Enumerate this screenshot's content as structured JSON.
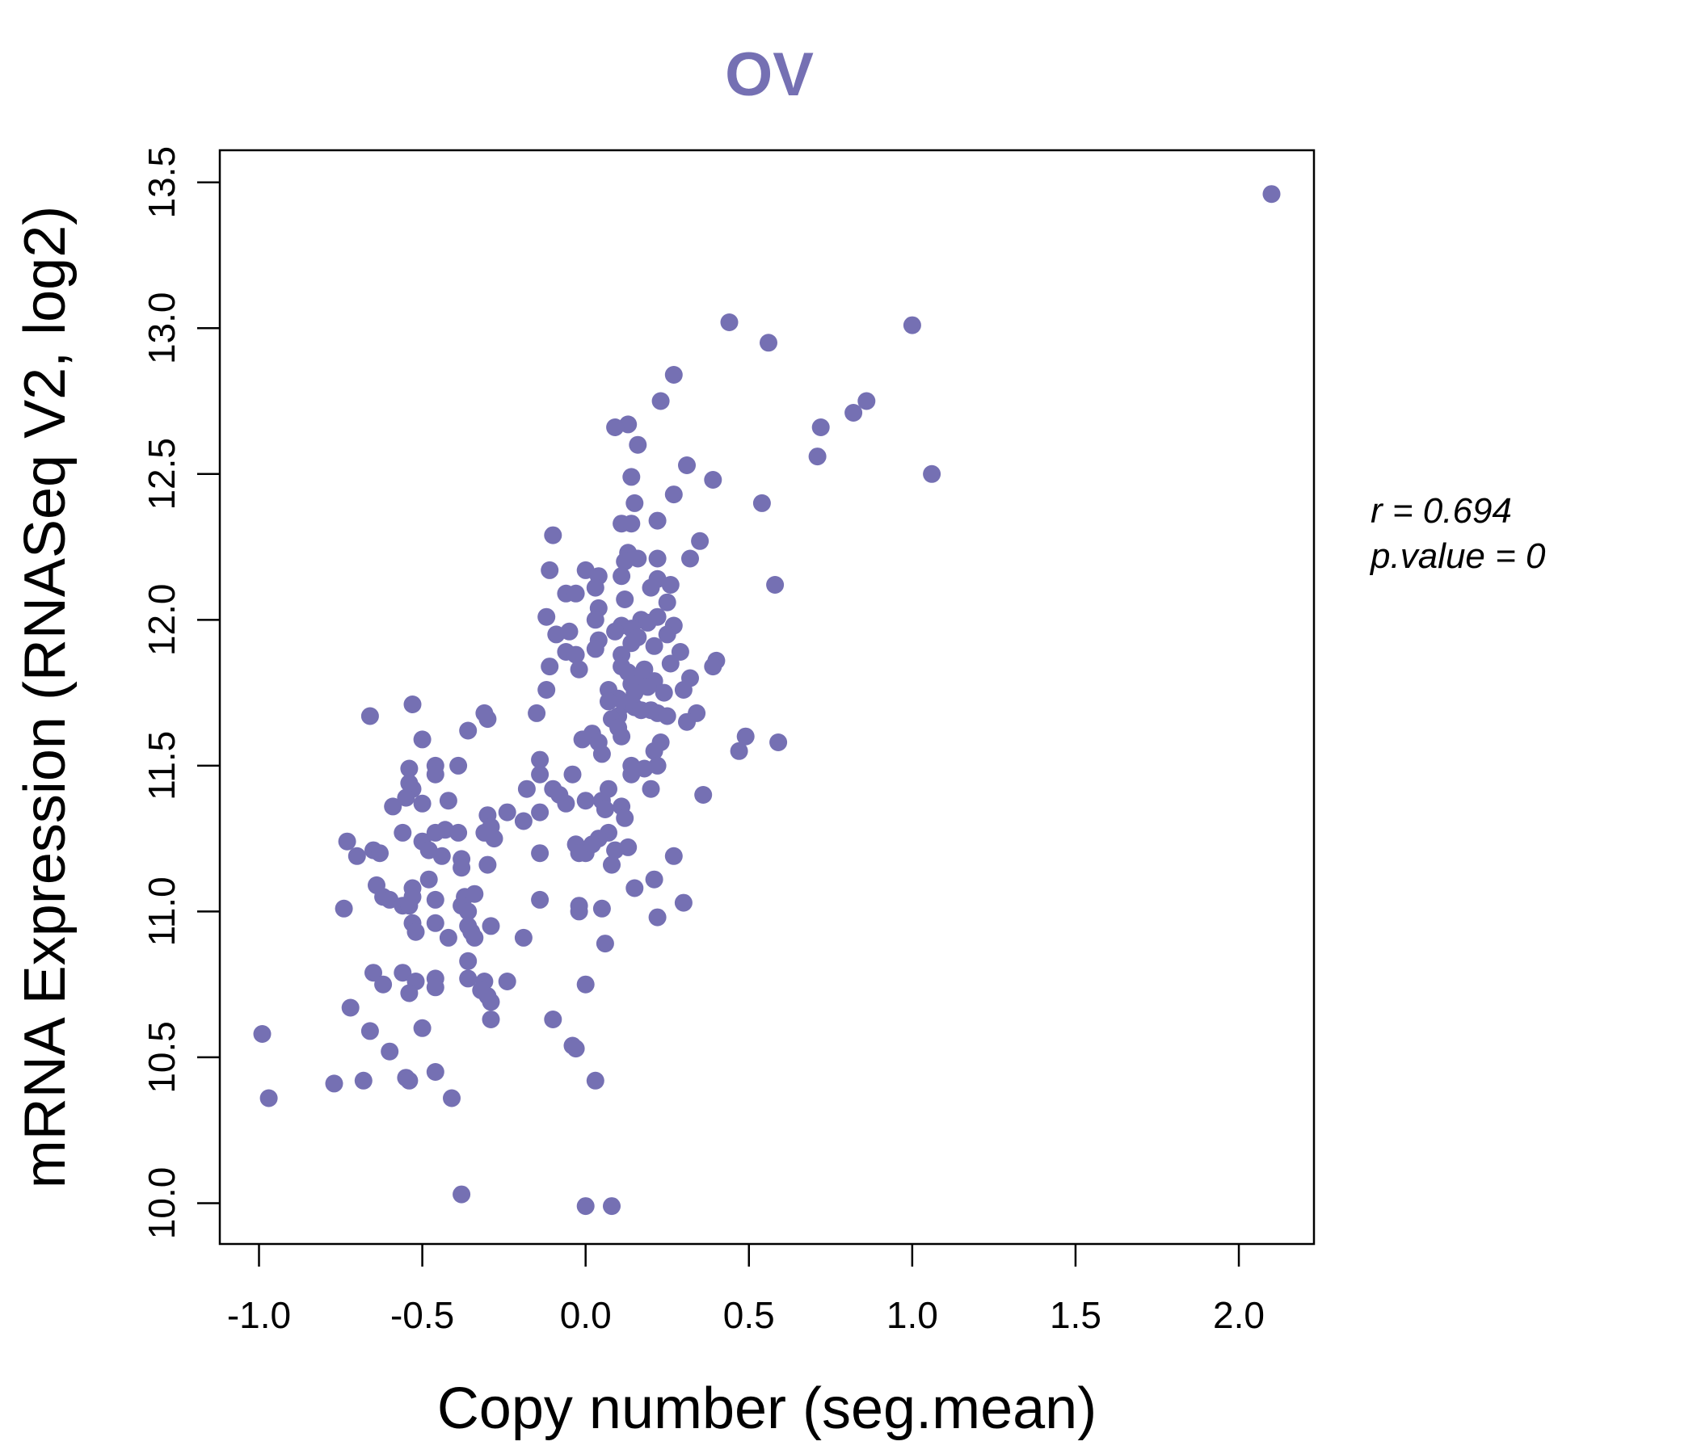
{
  "accent_color": "#7570b3",
  "chart_data": {
    "type": "scatter",
    "title": "OV",
    "xlabel": "Copy number (seg.mean)",
    "ylabel": "mRNA Expression (RNASeq V2, log2)",
    "xlim": [
      -1.12,
      2.23
    ],
    "ylim": [
      9.86,
      13.61
    ],
    "x_ticks": [
      -1.0,
      -0.5,
      0.0,
      0.5,
      1.0,
      1.5,
      2.0
    ],
    "x_tick_labels": [
      "-1.0",
      "-0.5",
      "0.0",
      "0.5",
      "1.0",
      "1.5",
      "2.0"
    ],
    "y_ticks": [
      10.0,
      10.5,
      11.0,
      11.5,
      12.0,
      12.5,
      13.0,
      13.5
    ],
    "y_tick_labels": [
      "10.0",
      "10.5",
      "11.0",
      "11.5",
      "12.0",
      "12.5",
      "13.0",
      "13.5"
    ],
    "grid": false,
    "point_color": "#7570b3",
    "stats": {
      "r_label": "r = 0.694",
      "p_label": "p.value = 0"
    },
    "points": [
      [
        2.1,
        13.46
      ],
      [
        0.44,
        13.02
      ],
      [
        0.56,
        12.95
      ],
      [
        1.0,
        13.01
      ],
      [
        0.27,
        12.84
      ],
      [
        0.23,
        12.75
      ],
      [
        0.86,
        12.75
      ],
      [
        0.82,
        12.71
      ],
      [
        0.72,
        12.66
      ],
      [
        0.13,
        12.67
      ],
      [
        0.09,
        12.66
      ],
      [
        0.16,
        12.6
      ],
      [
        0.71,
        12.56
      ],
      [
        0.31,
        12.53
      ],
      [
        1.06,
        12.5
      ],
      [
        0.39,
        12.48
      ],
      [
        0.14,
        12.49
      ],
      [
        0.27,
        12.43
      ],
      [
        0.54,
        12.4
      ],
      [
        0.15,
        12.4
      ],
      [
        0.11,
        12.33
      ],
      [
        0.14,
        12.33
      ],
      [
        0.22,
        12.34
      ],
      [
        -0.1,
        12.29
      ],
      [
        0.35,
        12.27
      ],
      [
        0.32,
        12.21
      ],
      [
        0.22,
        12.21
      ],
      [
        0.16,
        12.21
      ],
      [
        0.13,
        12.23
      ],
      [
        0.12,
        12.2
      ],
      [
        -0.11,
        12.17
      ],
      [
        0.0,
        12.17
      ],
      [
        0.11,
        12.15
      ],
      [
        0.04,
        12.15
      ],
      [
        0.22,
        12.14
      ],
      [
        0.26,
        12.12
      ],
      [
        0.58,
        12.12
      ],
      [
        0.2,
        12.11
      ],
      [
        0.03,
        12.11
      ],
      [
        -0.06,
        12.09
      ],
      [
        -0.03,
        12.09
      ],
      [
        0.25,
        12.06
      ],
      [
        0.12,
        12.07
      ],
      [
        0.04,
        12.04
      ],
      [
        -0.12,
        12.01
      ],
      [
        0.03,
        12.0
      ],
      [
        0.22,
        12.01
      ],
      [
        0.17,
        12.0
      ],
      [
        0.19,
        11.99
      ],
      [
        0.27,
        11.98
      ],
      [
        0.11,
        11.98
      ],
      [
        0.14,
        11.97
      ],
      [
        -0.09,
        11.95
      ],
      [
        -0.05,
        11.96
      ],
      [
        0.09,
        11.96
      ],
      [
        0.25,
        11.95
      ],
      [
        0.16,
        11.94
      ],
      [
        0.04,
        11.93
      ],
      [
        0.14,
        11.92
      ],
      [
        0.21,
        11.91
      ],
      [
        0.03,
        11.9
      ],
      [
        -0.06,
        11.89
      ],
      [
        0.29,
        11.89
      ],
      [
        0.11,
        11.88
      ],
      [
        -0.03,
        11.88
      ],
      [
        0.4,
        11.86
      ],
      [
        0.26,
        11.85
      ],
      [
        0.11,
        11.84
      ],
      [
        0.39,
        11.84
      ],
      [
        -0.11,
        11.84
      ],
      [
        0.18,
        11.83
      ],
      [
        0.13,
        11.82
      ],
      [
        -0.02,
        11.83
      ],
      [
        0.17,
        11.81
      ],
      [
        0.32,
        11.8
      ],
      [
        0.21,
        11.79
      ],
      [
        0.14,
        11.78
      ],
      [
        0.19,
        11.77
      ],
      [
        0.3,
        11.76
      ],
      [
        0.07,
        11.76
      ],
      [
        0.15,
        11.75
      ],
      [
        -0.12,
        11.76
      ],
      [
        0.24,
        11.75
      ],
      [
        0.1,
        11.73
      ],
      [
        0.07,
        11.72
      ],
      [
        0.12,
        11.71
      ],
      [
        0.15,
        11.7
      ],
      [
        0.2,
        11.69
      ],
      [
        0.17,
        11.69
      ],
      [
        0.34,
        11.68
      ],
      [
        0.22,
        11.68
      ],
      [
        -0.15,
        11.68
      ],
      [
        0.1,
        11.67
      ],
      [
        0.25,
        11.67
      ],
      [
        0.08,
        11.66
      ],
      [
        -0.66,
        11.67
      ],
      [
        -0.31,
        11.68
      ],
      [
        -0.3,
        11.66
      ],
      [
        0.31,
        11.65
      ],
      [
        0.1,
        11.63
      ],
      [
        -0.36,
        11.62
      ],
      [
        0.02,
        11.61
      ],
      [
        0.11,
        11.6
      ],
      [
        0.49,
        11.6
      ],
      [
        -0.01,
        11.59
      ],
      [
        -0.5,
        11.59
      ],
      [
        0.04,
        11.58
      ],
      [
        0.59,
        11.58
      ],
      [
        0.23,
        11.58
      ],
      [
        0.21,
        11.55
      ],
      [
        0.47,
        11.55
      ],
      [
        0.05,
        11.54
      ],
      [
        -0.53,
        11.71
      ],
      [
        -0.14,
        11.52
      ],
      [
        0.22,
        11.5
      ],
      [
        0.14,
        11.5
      ],
      [
        -0.39,
        11.5
      ],
      [
        -0.46,
        11.5
      ],
      [
        -0.54,
        11.49
      ],
      [
        0.18,
        11.49
      ],
      [
        -0.46,
        11.47
      ],
      [
        0.14,
        11.47
      ],
      [
        -0.04,
        11.47
      ],
      [
        -0.14,
        11.47
      ],
      [
        -0.54,
        11.44
      ],
      [
        -0.53,
        11.42
      ],
      [
        -0.18,
        11.42
      ],
      [
        0.07,
        11.42
      ],
      [
        0.2,
        11.42
      ],
      [
        -0.1,
        11.42
      ],
      [
        -0.08,
        11.4
      ],
      [
        0.36,
        11.4
      ],
      [
        -0.55,
        11.39
      ],
      [
        0.05,
        11.38
      ],
      [
        0.0,
        11.38
      ],
      [
        -0.42,
        11.38
      ],
      [
        -0.5,
        11.37
      ],
      [
        -0.06,
        11.37
      ],
      [
        -0.59,
        11.36
      ],
      [
        0.11,
        11.36
      ],
      [
        0.06,
        11.35
      ],
      [
        -0.24,
        11.34
      ],
      [
        -0.14,
        11.34
      ],
      [
        -0.3,
        11.33
      ],
      [
        0.12,
        11.32
      ],
      [
        -0.19,
        11.31
      ],
      [
        -0.29,
        11.29
      ],
      [
        -0.43,
        11.28
      ],
      [
        -0.46,
        11.27
      ],
      [
        -0.39,
        11.27
      ],
      [
        0.07,
        11.27
      ],
      [
        -0.56,
        11.27
      ],
      [
        -0.31,
        11.27
      ],
      [
        0.04,
        11.25
      ],
      [
        -0.28,
        11.25
      ],
      [
        -0.73,
        11.24
      ],
      [
        -0.5,
        11.24
      ],
      [
        0.02,
        11.23
      ],
      [
        -0.03,
        11.23
      ],
      [
        -0.48,
        11.21
      ],
      [
        0.13,
        11.22
      ],
      [
        -0.14,
        11.2
      ],
      [
        -0.65,
        11.21
      ],
      [
        0.09,
        11.21
      ],
      [
        -0.63,
        11.2
      ],
      [
        0.0,
        11.2
      ],
      [
        -0.02,
        11.2
      ],
      [
        -0.7,
        11.19
      ],
      [
        0.27,
        11.19
      ],
      [
        -0.44,
        11.19
      ],
      [
        -0.38,
        11.18
      ],
      [
        0.08,
        11.16
      ],
      [
        -0.3,
        11.16
      ],
      [
        -0.38,
        11.15
      ],
      [
        -0.48,
        11.11
      ],
      [
        0.21,
        11.11
      ],
      [
        -0.64,
        11.09
      ],
      [
        0.15,
        11.08
      ],
      [
        -0.53,
        11.08
      ],
      [
        -0.37,
        11.05
      ],
      [
        -0.34,
        11.06
      ],
      [
        -0.62,
        11.05
      ],
      [
        -0.53,
        11.05
      ],
      [
        -0.6,
        11.04
      ],
      [
        -0.46,
        11.04
      ],
      [
        -0.14,
        11.04
      ],
      [
        -0.56,
        11.02
      ],
      [
        0.3,
        11.03
      ],
      [
        -0.38,
        11.02
      ],
      [
        -0.54,
        11.02
      ],
      [
        -0.02,
        11.02
      ],
      [
        0.05,
        11.01
      ],
      [
        -0.74,
        11.01
      ],
      [
        -0.36,
        11.0
      ],
      [
        -0.02,
        11.0
      ],
      [
        0.22,
        10.98
      ],
      [
        -0.53,
        10.96
      ],
      [
        -0.46,
        10.96
      ],
      [
        -0.36,
        10.95
      ],
      [
        -0.29,
        10.95
      ],
      [
        -0.52,
        10.93
      ],
      [
        -0.35,
        10.93
      ],
      [
        -0.42,
        10.91
      ],
      [
        -0.19,
        10.91
      ],
      [
        -0.34,
        10.91
      ],
      [
        0.06,
        10.89
      ],
      [
        -0.36,
        10.83
      ],
      [
        -0.65,
        10.79
      ],
      [
        -0.56,
        10.79
      ],
      [
        -0.46,
        10.77
      ],
      [
        -0.36,
        10.77
      ],
      [
        -0.31,
        10.76
      ],
      [
        -0.24,
        10.76
      ],
      [
        -0.52,
        10.76
      ],
      [
        -0.62,
        10.75
      ],
      [
        -0.46,
        10.74
      ],
      [
        0.0,
        10.75
      ],
      [
        -0.32,
        10.73
      ],
      [
        -0.54,
        10.72
      ],
      [
        -0.3,
        10.71
      ],
      [
        -0.29,
        10.69
      ],
      [
        -0.72,
        10.67
      ],
      [
        -0.29,
        10.63
      ],
      [
        -0.1,
        10.63
      ],
      [
        -0.5,
        10.6
      ],
      [
        -0.66,
        10.59
      ],
      [
        -0.99,
        10.58
      ],
      [
        -0.6,
        10.52
      ],
      [
        -0.04,
        10.54
      ],
      [
        -0.03,
        10.53
      ],
      [
        -0.46,
        10.45
      ],
      [
        -0.55,
        10.43
      ],
      [
        -0.68,
        10.42
      ],
      [
        -0.54,
        10.42
      ],
      [
        0.03,
        10.42
      ],
      [
        -0.77,
        10.41
      ],
      [
        -0.97,
        10.36
      ],
      [
        -0.41,
        10.36
      ],
      [
        -0.38,
        10.03
      ],
      [
        0.0,
        9.99
      ],
      [
        0.08,
        9.99
      ]
    ]
  }
}
